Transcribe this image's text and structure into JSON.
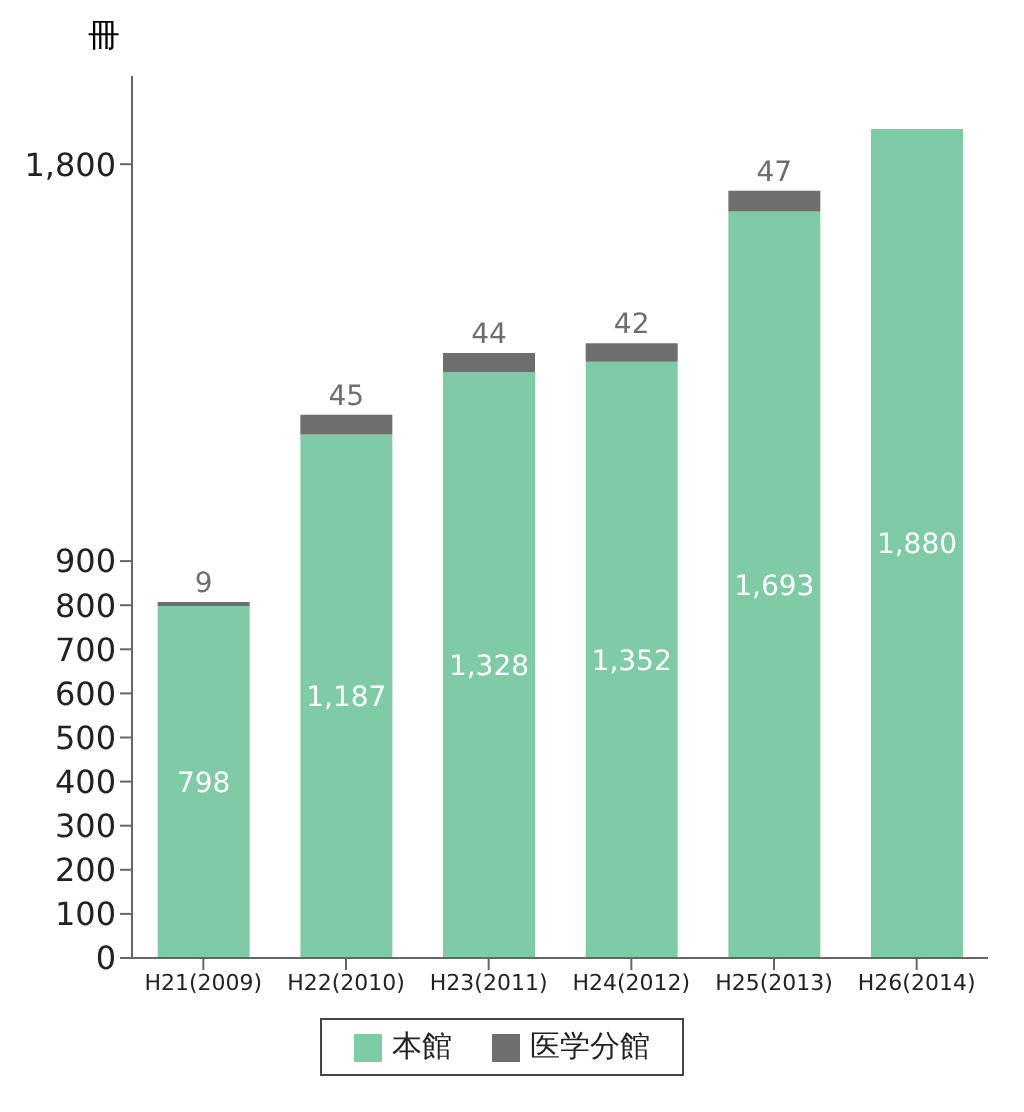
{
  "chart_data": {
    "type": "bar",
    "ylabel": "冊",
    "categories": [
      "H21(2009)",
      "H22(2010)",
      "H23(2011)",
      "H24(2012)",
      "H25(2013)",
      "H26(2014)"
    ],
    "series": [
      {
        "name": "本館",
        "color": "#7fcba5",
        "values": [
          798,
          1187,
          1328,
          1352,
          1693,
          1880
        ],
        "value_labels": [
          "798",
          "1,187",
          "1,328",
          "1,352",
          "1,693",
          "1,880"
        ]
      },
      {
        "name": "医学分館",
        "color": "#6e6e6e",
        "values": [
          9,
          45,
          44,
          42,
          47,
          null
        ],
        "value_labels": [
          "9",
          "45",
          "44",
          "42",
          "47",
          null
        ]
      }
    ],
    "stacked": true,
    "ylim": [
      0,
      2000
    ],
    "yticks": [
      0,
      100,
      200,
      300,
      400,
      500,
      600,
      700,
      800,
      900,
      {
        "value": 1800,
        "label": "1,800"
      }
    ],
    "legend": "bottom"
  }
}
